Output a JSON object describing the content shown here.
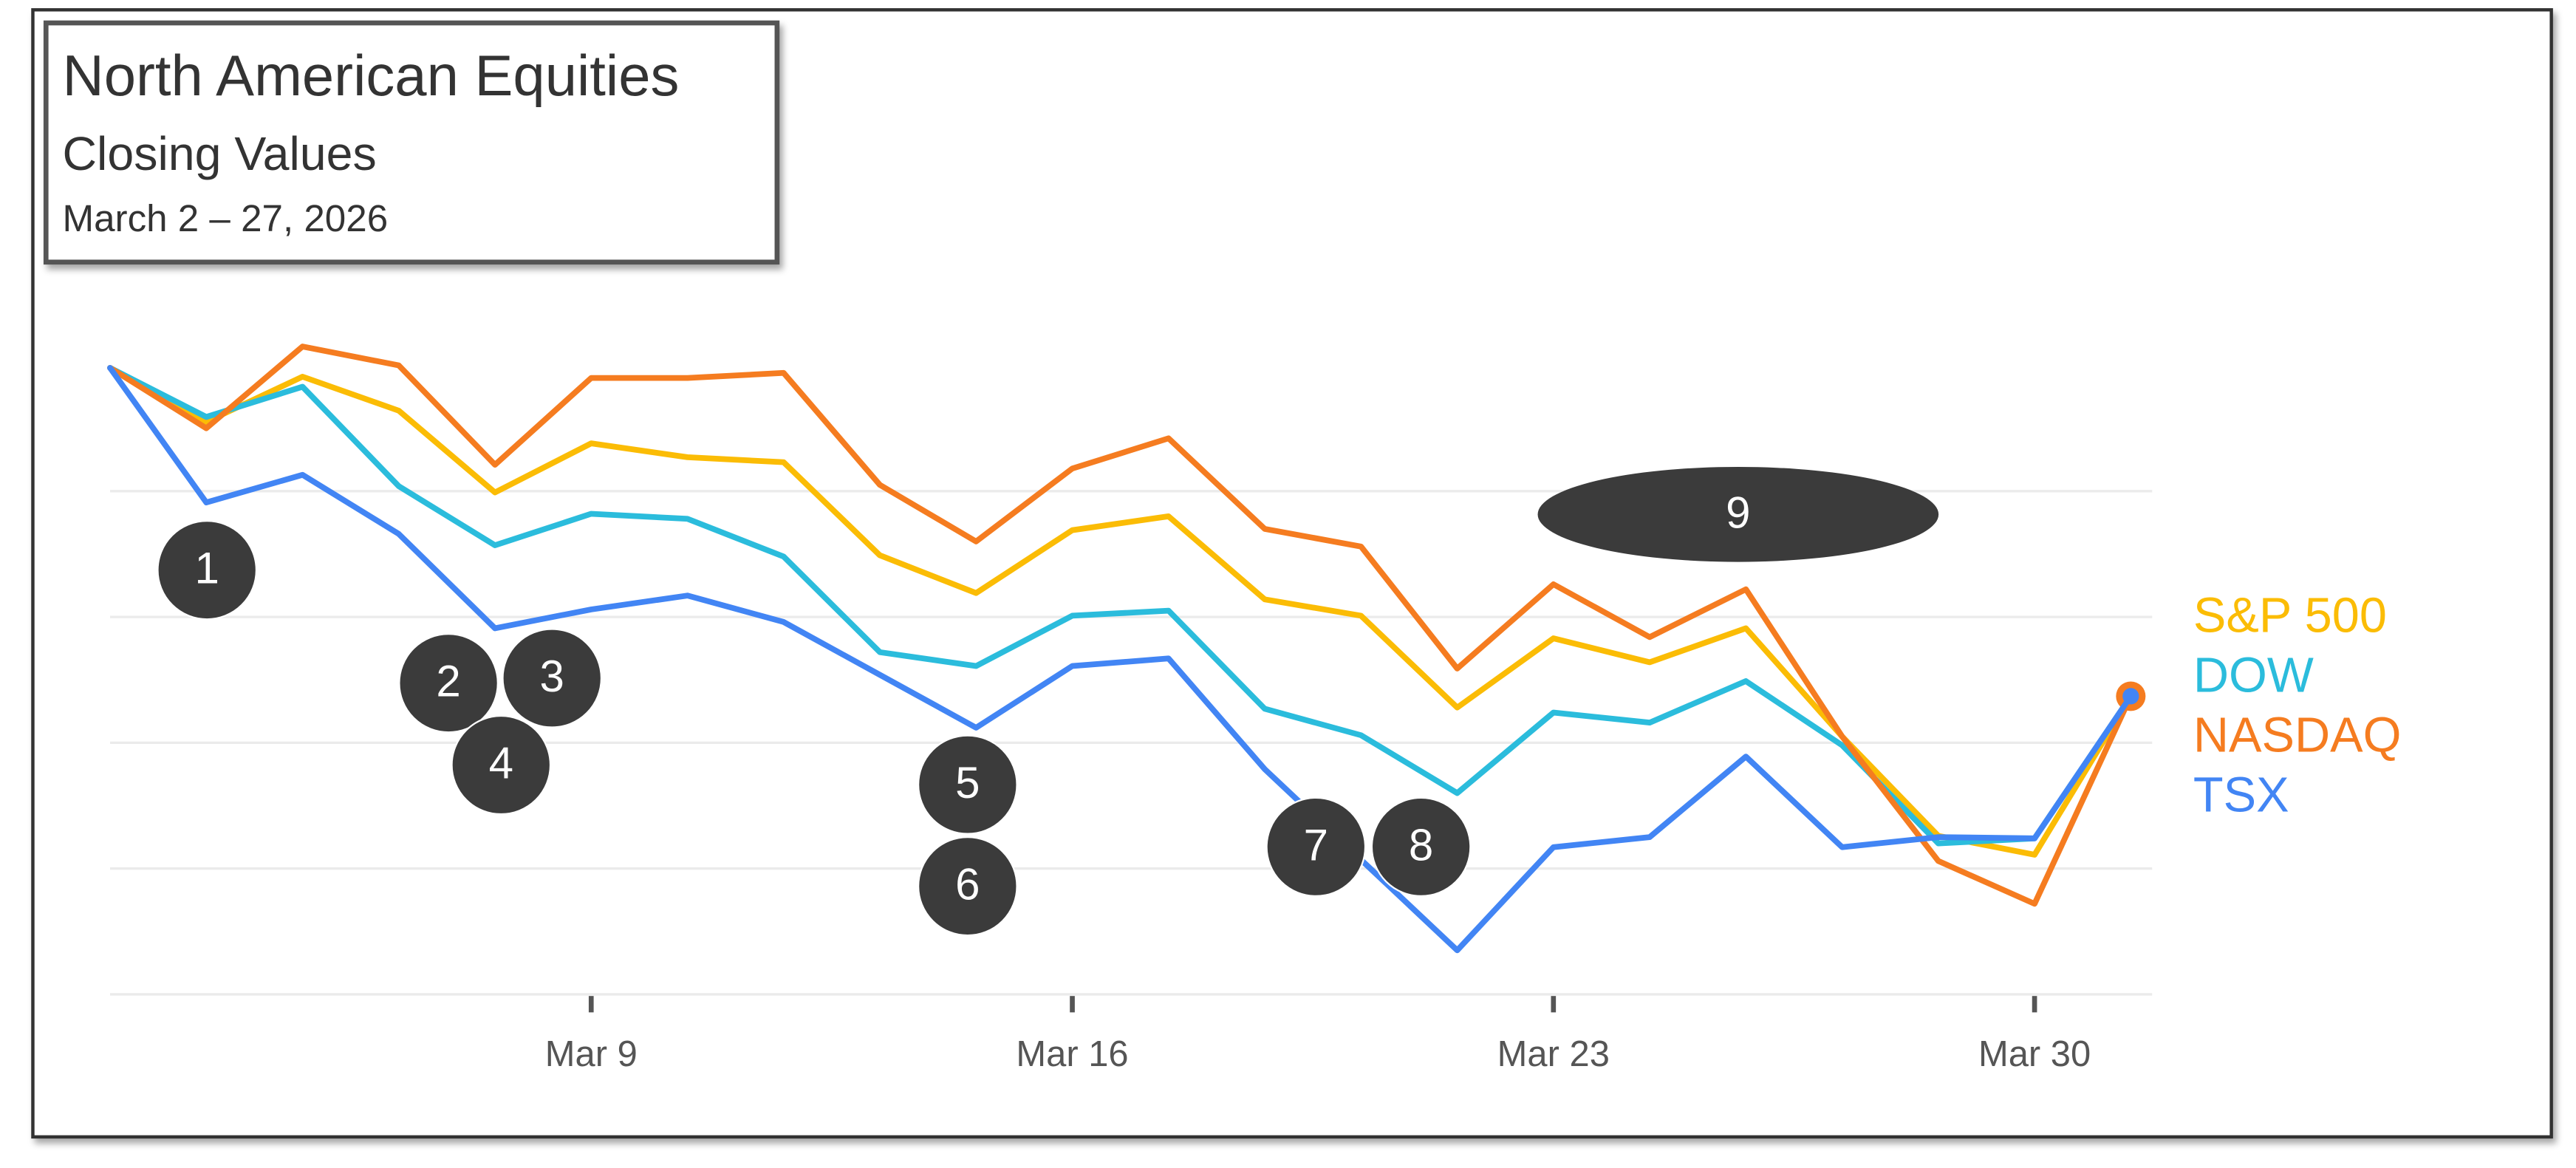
{
  "chart_data": {
    "type": "line",
    "title": "North American Equities",
    "subtitle": "Closing Values",
    "date_range": "March 2 – 27, 2026",
    "categories": [
      null,
      null,
      null,
      null,
      null,
      "Mar 9",
      null,
      null,
      null,
      null,
      "Mar 16",
      null,
      null,
      null,
      null,
      "Mar 23",
      null,
      null,
      null,
      null,
      "Mar 30",
      null
    ],
    "series": [
      {
        "name": "S&P 500",
        "color": "#fbbc05",
        "values": [
          4.98,
          4.55,
          4.91,
          4.64,
          3.99,
          4.38,
          4.27,
          4.23,
          3.49,
          3.19,
          3.69,
          3.8,
          3.14,
          3.01,
          2.28,
          2.83,
          2.64,
          2.91,
          2.05,
          1.26,
          1.11,
          2.37
        ]
      },
      {
        "name": "DOW",
        "color": "#2bbcdc",
        "values": [
          4.98,
          4.59,
          4.83,
          4.04,
          3.57,
          3.82,
          3.78,
          3.48,
          2.72,
          2.61,
          3.01,
          3.05,
          2.27,
          2.06,
          1.6,
          2.24,
          2.16,
          2.49,
          1.98,
          1.2,
          1.24,
          2.37
        ]
      },
      {
        "name": "NASDAQ",
        "color": "#f57c20",
        "values": [
          4.98,
          4.5,
          5.15,
          5.0,
          4.21,
          4.9,
          4.9,
          4.94,
          4.05,
          3.6,
          4.18,
          4.42,
          3.7,
          3.56,
          2.59,
          3.26,
          2.84,
          3.22,
          2.05,
          1.06,
          0.72,
          2.37
        ]
      },
      {
        "name": "TSX",
        "color": "#4285f4",
        "values": [
          4.98,
          3.91,
          4.13,
          3.66,
          2.91,
          3.06,
          3.17,
          2.96,
          2.54,
          2.12,
          2.61,
          2.67,
          1.79,
          1.07,
          0.35,
          1.17,
          1.25,
          1.89,
          1.17,
          1.25,
          1.24,
          2.37
        ]
      }
    ],
    "ylim": [
      0,
      5.3
    ],
    "yticks": [
      0,
      1,
      2,
      3,
      4
    ],
    "grid": true,
    "legend": "right",
    "annotations": [
      "1",
      "2",
      "3",
      "4",
      "5",
      "6",
      "7",
      "8",
      "9"
    ]
  }
}
